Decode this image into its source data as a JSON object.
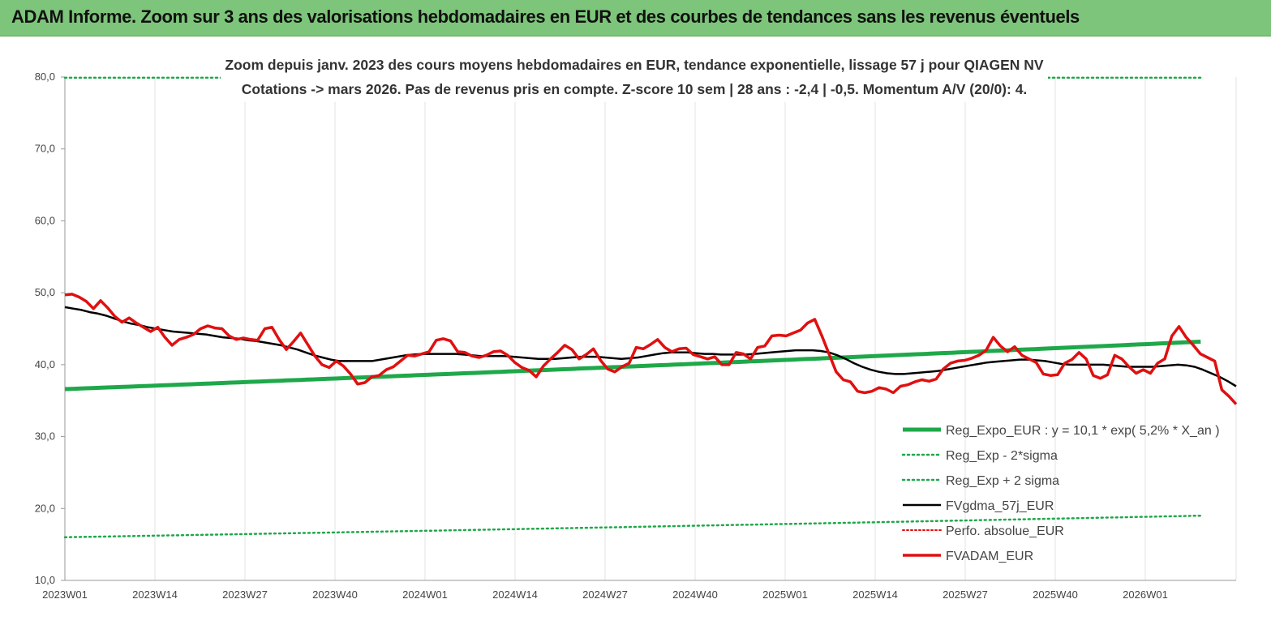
{
  "banner": {
    "title": "ADAM Informe. Zoom sur 3 ans des valorisations hebdomadaires en EUR et des courbes de tendances sans les revenus éventuels"
  },
  "colors": {
    "banner_bg": "#7dc57a",
    "reg_expo": "#1fa84a",
    "fvgdma": "#000000",
    "perfo": "#e01010",
    "fvadam": "#e01010"
  },
  "chart_data": {
    "type": "line",
    "title": "Zoom depuis janv. 2023 des cours moyens hebdomadaires en EUR, tendance exponentielle, lissage 57 j pour QIAGEN NV",
    "subtitle": "Cotations -> mars 2026. Pas de revenus pris en compte. Z-score 10 sem | 28 ans : -2,4 | -0,5. Momentum A/V (20/0): 4.",
    "x_ticks": [
      "2023W01",
      "2023W14",
      "2023W27",
      "2023W40",
      "2024W01",
      "2024W14",
      "2024W27",
      "2024W40",
      "2025W01",
      "2025W14",
      "2025W27",
      "2025W40",
      "2026W01"
    ],
    "x_tick_step_weeks": 13,
    "y_ticks": [
      "10,0",
      "20,0",
      "30,0",
      "40,0",
      "50,0",
      "60,0",
      "70,0",
      "80,0"
    ],
    "ylim": [
      10,
      80
    ],
    "grid": "vertical",
    "legend_position": "bottom-right",
    "series": [
      {
        "name": "Reg_Expo_EUR : y = 10,1 * exp( 5,2% *  X_an )",
        "style": "thick",
        "values": [
          36.6,
          43.2
        ]
      },
      {
        "name": "Reg_Exp - 2*sigma",
        "style": "dotted",
        "values": [
          16.0,
          19.0
        ]
      },
      {
        "name": "Reg_Exp + 2 sigma",
        "style": "dotted",
        "values": [
          79.9,
          79.9
        ]
      },
      {
        "name": "FVgdma_57j_EUR",
        "style": "solid",
        "values": [
          48.0,
          47.8,
          47.6,
          47.3,
          47.1,
          46.8,
          46.4,
          46.0,
          45.7,
          45.5,
          45.2,
          45.0,
          44.8,
          44.6,
          44.5,
          44.4,
          44.3,
          44.2,
          44.0,
          43.8,
          43.7,
          43.6,
          43.4,
          43.3,
          43.1,
          42.9,
          42.7,
          42.4,
          42.1,
          41.7,
          41.3,
          41.0,
          40.7,
          40.5,
          40.5,
          40.5,
          40.5,
          40.5,
          40.7,
          40.9,
          41.1,
          41.3,
          41.4,
          41.5,
          41.5,
          41.5,
          41.5,
          41.5,
          41.4,
          41.3,
          41.2,
          41.2,
          41.2,
          41.2,
          41.1,
          41.0,
          40.9,
          40.8,
          40.8,
          40.8,
          40.9,
          41.0,
          41.1,
          41.1,
          41.1,
          41.0,
          40.9,
          40.8,
          40.9,
          41.0,
          41.2,
          41.4,
          41.6,
          41.7,
          41.7,
          41.7,
          41.6,
          41.5,
          41.5,
          41.4,
          41.4,
          41.4,
          41.4,
          41.5,
          41.6,
          41.7,
          41.8,
          41.9,
          42.0,
          42.0,
          42.0,
          41.9,
          41.7,
          41.3,
          40.8,
          40.2,
          39.7,
          39.3,
          39.0,
          38.8,
          38.7,
          38.7,
          38.8,
          38.9,
          39.0,
          39.1,
          39.3,
          39.5,
          39.7,
          39.9,
          40.1,
          40.3,
          40.4,
          40.5,
          40.6,
          40.7,
          40.7,
          40.6,
          40.5,
          40.3,
          40.1,
          40.0,
          40.0,
          40.0,
          40.0,
          40.0,
          39.9,
          39.8,
          39.7,
          39.7,
          39.7,
          39.7,
          39.8,
          39.9,
          40.0,
          39.9,
          39.7,
          39.3,
          38.8,
          38.3,
          37.7,
          37.0
        ]
      },
      {
        "name": "Perfo. absolue_EUR",
        "style": "dotted",
        "values": []
      },
      {
        "name": "FVADAM_EUR",
        "style": "thick",
        "values": [
          49.7,
          49.8,
          49.4,
          48.8,
          47.8,
          48.9,
          47.9,
          46.7,
          45.9,
          46.5,
          45.8,
          45.2,
          44.6,
          45.2,
          43.8,
          42.7,
          43.5,
          43.8,
          44.2,
          45.0,
          45.4,
          45.1,
          45.0,
          44.0,
          43.5,
          43.7,
          43.5,
          43.4,
          45.0,
          45.2,
          43.5,
          42.1,
          43.2,
          44.4,
          42.8,
          41.2,
          40.0,
          39.6,
          40.5,
          39.8,
          38.7,
          37.3,
          37.5,
          38.3,
          38.5,
          39.3,
          39.7,
          40.5,
          41.3,
          41.2,
          41.5,
          41.8,
          43.4,
          43.6,
          43.3,
          41.8,
          41.7,
          41.2,
          41.0,
          41.3,
          41.8,
          41.9,
          41.3,
          40.3,
          39.6,
          39.2,
          38.3,
          39.8,
          40.8,
          41.7,
          42.7,
          42.1,
          40.8,
          41.4,
          42.2,
          40.6,
          39.4,
          39.0,
          39.7,
          40.2,
          42.4,
          42.2,
          42.8,
          43.5,
          42.4,
          41.8,
          42.2,
          42.3,
          41.4,
          41.1,
          40.8,
          41.1,
          40.0,
          40.0,
          41.7,
          41.5,
          40.8,
          42.4,
          42.6,
          44.0,
          44.1,
          44.0,
          44.4,
          44.8,
          45.8,
          46.3,
          44.0,
          41.5,
          39.0,
          37.9,
          37.6,
          36.3,
          36.1,
          36.3,
          36.8,
          36.6,
          36.1,
          37.0,
          37.2,
          37.6,
          37.9,
          37.7,
          38.0,
          39.4,
          40.2,
          40.5,
          40.6,
          40.9,
          41.3,
          42.0,
          43.8,
          42.6,
          41.8,
          42.5,
          41.3,
          40.8,
          40.3,
          38.7,
          38.5,
          38.6,
          40.2,
          40.7,
          41.7,
          40.8,
          38.5,
          38.1,
          38.6,
          41.3,
          40.8,
          39.7,
          38.8,
          39.3,
          38.8,
          40.2,
          40.8,
          44.0,
          45.3,
          43.8,
          42.7,
          41.5,
          41.0,
          40.5,
          36.5,
          35.6,
          34.5
        ]
      }
    ]
  }
}
